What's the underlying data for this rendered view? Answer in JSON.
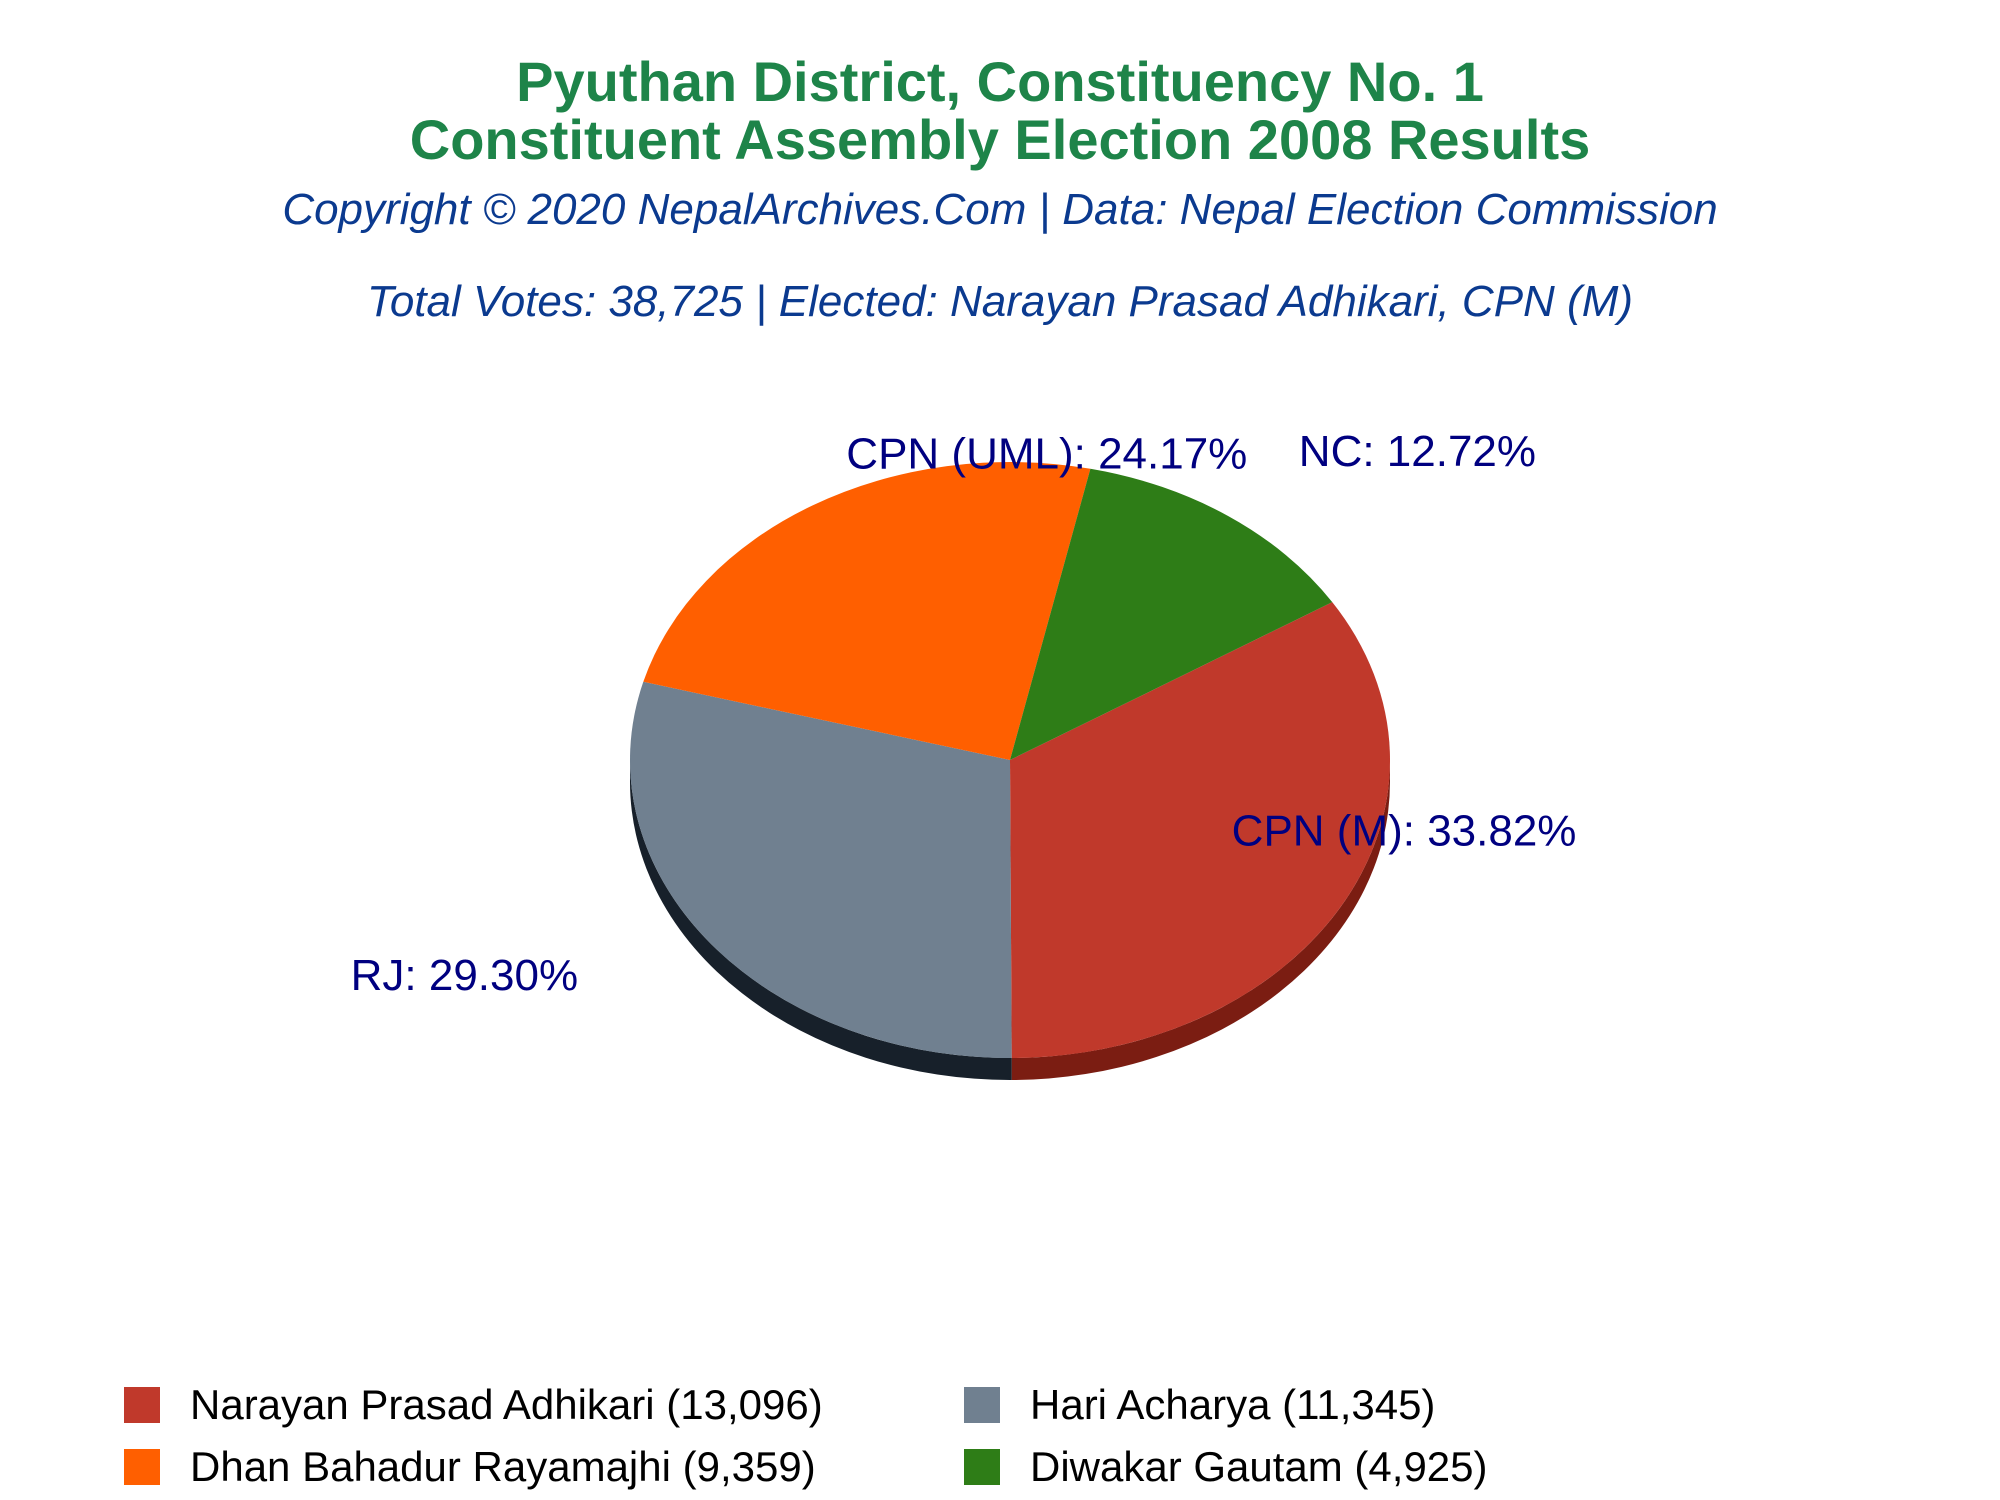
{
  "title_line1": "Pyuthan District, Constituency No. 1",
  "title_line2": "Constituent Assembly Election 2008 Results",
  "subtitle": "Copyright © 2020 NepalArchives.Com | Data: Nepal Election Commission",
  "info": "Total Votes: 38,725 | Elected: Narayan Prasad Adhikari, CPN (M)",
  "colors": {
    "title": "#1e8449",
    "subtitle": "#0b3a8f",
    "slice_label": "#000080"
  },
  "chart_data": {
    "type": "pie",
    "title": "Pyuthan District, Constituency No. 1 Constituent Assembly Election 2008 Results",
    "total_votes": 38725,
    "start_angle_deg": -32,
    "slices": [
      {
        "party": "CPN (M)",
        "candidate": "Narayan Prasad Adhikari",
        "votes": 13096,
        "percent": 33.82,
        "label": "CPN (M): 33.82%",
        "legend": "Narayan Prasad Adhikari (13,096)",
        "color": "#c0392b",
        "side_color": "#7b1d12"
      },
      {
        "party": "RJ",
        "candidate": "Hari Acharya",
        "votes": 11345,
        "percent": 29.3,
        "label": "RJ: 29.30%",
        "legend": "Hari Acharya (11,345)",
        "color": "#708090",
        "side_color": "#17202a"
      },
      {
        "party": "CPN (UML)",
        "candidate": "Dhan Bahadur Rayamajhi",
        "votes": 9359,
        "percent": 24.17,
        "label": "CPN (UML): 24.17%",
        "legend": "Dhan Bahadur Rayamajhi (9,359)",
        "color": "#ff5f00",
        "side_color": "#a50000"
      },
      {
        "party": "NC",
        "candidate": "Diwakar Gautam",
        "votes": 4925,
        "percent": 12.72,
        "label": "NC: 12.72%",
        "legend": "Diwakar Gautam (4,925)",
        "color": "#2e7d17",
        "side_color": "#1a4a0c"
      }
    ],
    "legend_order": [
      0,
      1,
      2,
      3
    ]
  }
}
